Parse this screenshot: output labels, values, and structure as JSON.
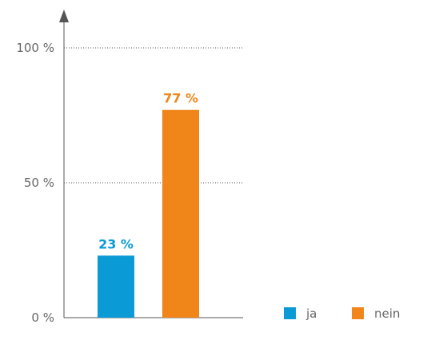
{
  "chart_data": {
    "type": "bar",
    "categories": [
      "ja",
      "nein"
    ],
    "values": [
      23,
      77
    ],
    "data_labels": [
      "23 %",
      "77 %"
    ],
    "colors": [
      "#0a9ad6",
      "#f08519"
    ],
    "ylim": [
      0,
      100
    ],
    "yticks": [
      {
        "value": 0,
        "label": "0 %"
      },
      {
        "value": 50,
        "label": "50 %"
      },
      {
        "value": 100,
        "label": "100 %"
      }
    ],
    "grid": true,
    "legend": {
      "placement": "bottom-right",
      "items": [
        {
          "label": "ja",
          "color": "#0a9ad6"
        },
        {
          "label": "nein",
          "color": "#f08519"
        }
      ]
    },
    "title": "",
    "xlabel": "",
    "ylabel": ""
  }
}
